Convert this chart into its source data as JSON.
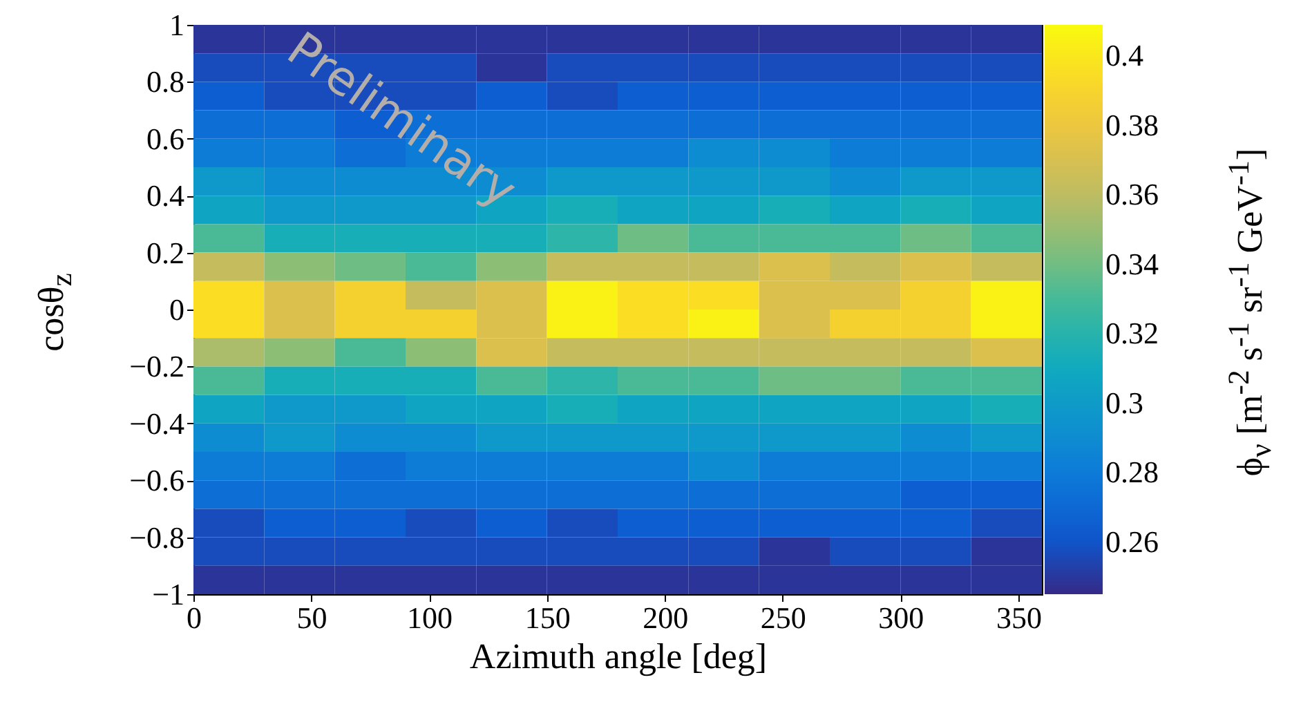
{
  "chart_data": {
    "type": "heatmap",
    "xlabel": "Azimuth angle [deg]",
    "ylabel": "cosθ$_{z}$",
    "clabel": "ϕ$_{ν}$ [m$^{-2}$ s$^{-1}$ sr$^{-1}$ GeV$^{-1}$]",
    "annotations": [
      "Preliminary"
    ],
    "x": [
      15,
      45,
      75,
      105,
      135,
      165,
      195,
      225,
      255,
      285,
      315,
      345
    ],
    "y": [
      0.95,
      0.85,
      0.75,
      0.65,
      0.55,
      0.45,
      0.35,
      0.25,
      0.15,
      0.05,
      -0.05,
      -0.15,
      -0.25,
      -0.35,
      -0.45,
      -0.55,
      -0.65,
      -0.75,
      -0.85,
      -0.95
    ],
    "xlim": [
      0,
      360
    ],
    "xticks": [
      0,
      50,
      100,
      150,
      200,
      250,
      300,
      350
    ],
    "ylim": [
      -1,
      1
    ],
    "yticks": [
      -1,
      -0.8,
      -0.6,
      -0.4,
      -0.2,
      0,
      0.2,
      0.4,
      0.6,
      0.8,
      1
    ],
    "clim": [
      0.245,
      0.409
    ],
    "cticks": [
      0.26,
      0.28,
      0.3,
      0.32,
      0.34,
      0.36,
      0.38,
      0.4
    ],
    "cells": [
      [
        0.249,
        0.249,
        0.249,
        0.249,
        0.249,
        0.249,
        0.249,
        0.249,
        0.249,
        0.249,
        0.249,
        0.249
      ],
      [
        0.257,
        0.257,
        0.257,
        0.257,
        0.249,
        0.257,
        0.257,
        0.257,
        0.257,
        0.257,
        0.257,
        0.257
      ],
      [
        0.265,
        0.257,
        0.257,
        0.257,
        0.265,
        0.257,
        0.265,
        0.265,
        0.265,
        0.265,
        0.265,
        0.265
      ],
      [
        0.273,
        0.273,
        0.265,
        0.273,
        0.273,
        0.273,
        0.273,
        0.273,
        0.273,
        0.273,
        0.273,
        0.273
      ],
      [
        0.281,
        0.281,
        0.273,
        0.281,
        0.281,
        0.281,
        0.281,
        0.29,
        0.29,
        0.281,
        0.281,
        0.281
      ],
      [
        0.298,
        0.29,
        0.29,
        0.29,
        0.29,
        0.298,
        0.298,
        0.298,
        0.298,
        0.29,
        0.298,
        0.298
      ],
      [
        0.306,
        0.298,
        0.298,
        0.298,
        0.306,
        0.314,
        0.306,
        0.306,
        0.314,
        0.306,
        0.314,
        0.306
      ],
      [
        0.331,
        0.314,
        0.314,
        0.314,
        0.314,
        0.322,
        0.339,
        0.331,
        0.331,
        0.331,
        0.339,
        0.331
      ],
      [
        0.363,
        0.347,
        0.339,
        0.331,
        0.347,
        0.363,
        0.363,
        0.363,
        0.372,
        0.363,
        0.372,
        0.363
      ],
      [
        0.396,
        0.372,
        0.388,
        0.363,
        0.372,
        0.405,
        0.396,
        0.396,
        0.372,
        0.372,
        0.388,
        0.405
      ],
      [
        0.396,
        0.372,
        0.388,
        0.388,
        0.372,
        0.405,
        0.396,
        0.405,
        0.372,
        0.388,
        0.388,
        0.405
      ],
      [
        0.355,
        0.347,
        0.331,
        0.347,
        0.372,
        0.363,
        0.363,
        0.363,
        0.363,
        0.363,
        0.363,
        0.372
      ],
      [
        0.331,
        0.314,
        0.314,
        0.314,
        0.331,
        0.322,
        0.331,
        0.331,
        0.339,
        0.339,
        0.331,
        0.331
      ],
      [
        0.306,
        0.298,
        0.298,
        0.306,
        0.306,
        0.314,
        0.306,
        0.306,
        0.306,
        0.306,
        0.306,
        0.314
      ],
      [
        0.29,
        0.298,
        0.29,
        0.29,
        0.298,
        0.298,
        0.298,
        0.298,
        0.298,
        0.298,
        0.29,
        0.298
      ],
      [
        0.281,
        0.281,
        0.273,
        0.281,
        0.281,
        0.281,
        0.281,
        0.29,
        0.281,
        0.281,
        0.281,
        0.281
      ],
      [
        0.273,
        0.273,
        0.273,
        0.273,
        0.273,
        0.273,
        0.273,
        0.273,
        0.273,
        0.273,
        0.265,
        0.265
      ],
      [
        0.257,
        0.265,
        0.265,
        0.257,
        0.265,
        0.257,
        0.265,
        0.265,
        0.265,
        0.265,
        0.265,
        0.257
      ],
      [
        0.257,
        0.257,
        0.257,
        0.257,
        0.257,
        0.257,
        0.257,
        0.257,
        0.249,
        0.257,
        0.257,
        0.249
      ],
      [
        0.249,
        0.249,
        0.249,
        0.249,
        0.249,
        0.249,
        0.249,
        0.249,
        0.249,
        0.249,
        0.249,
        0.249
      ]
    ]
  }
}
